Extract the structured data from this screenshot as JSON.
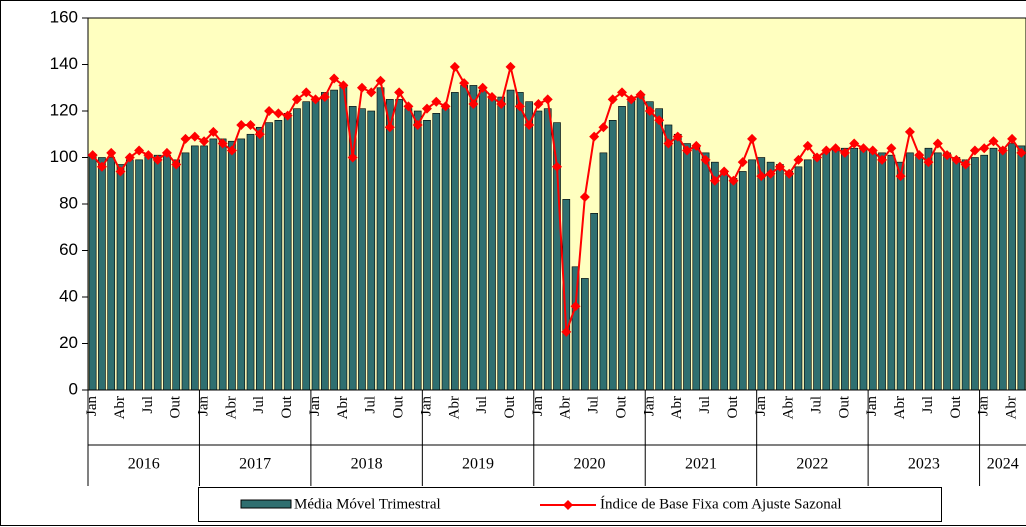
{
  "chart_data": {
    "type": "bar-line",
    "categories": [
      "Jan",
      null,
      null,
      "Abr",
      null,
      null,
      "Jul",
      null,
      null,
      "Out",
      null,
      null,
      "Jan",
      null,
      null,
      "Abr",
      null,
      null,
      "Jul",
      null,
      null,
      "Out",
      null,
      null,
      "Jan",
      null,
      null,
      "Abr",
      null,
      null,
      "Jul",
      null,
      null,
      "Out",
      null,
      null,
      "Jan",
      null,
      null,
      "Abr",
      null,
      null,
      "Jul",
      null,
      null,
      "Out",
      null,
      null,
      "Jan",
      null,
      null,
      "Abr",
      null,
      null,
      "Jul",
      null,
      null,
      "Out",
      null,
      null,
      "Jan",
      null,
      null,
      "Abr",
      null,
      null,
      "Jul",
      null,
      null,
      "Out",
      null,
      null,
      "Jan",
      null,
      null,
      "Abr",
      null,
      null,
      "Jul",
      null,
      null,
      "Out",
      null,
      null,
      "Jan",
      null,
      null,
      "Abr",
      null,
      null,
      "Jul",
      null,
      null,
      "Out",
      null,
      null,
      "Jan",
      null,
      null,
      "Abr",
      null
    ],
    "years": [
      "2016",
      "2017",
      "2018",
      "2019",
      "2020",
      "2021",
      "2022",
      "2023",
      "2024"
    ],
    "series": [
      {
        "name": "Média Móvel Trimestral",
        "kind": "bar",
        "color": "#2f6f70",
        "values": [
          101,
          100,
          100,
          97,
          99,
          99,
          101,
          101,
          101,
          99,
          102,
          105,
          105,
          108,
          108,
          107,
          108,
          110,
          113,
          115,
          116,
          119,
          121,
          124,
          125,
          128,
          129,
          131,
          122,
          121,
          120,
          130,
          125,
          125,
          121,
          120,
          116,
          119,
          121,
          128,
          131,
          131,
          129,
          126,
          126,
          129,
          128,
          124,
          120,
          121,
          115,
          82,
          53,
          48,
          76,
          102,
          116,
          122,
          126,
          127,
          124,
          121,
          114,
          110,
          106,
          105,
          102,
          98,
          94,
          91,
          94,
          99,
          100,
          98,
          97,
          94,
          96,
          99,
          101,
          103,
          104,
          104,
          104,
          104,
          103,
          102,
          101,
          98,
          102,
          101,
          104,
          102,
          102,
          100,
          99,
          100,
          101,
          104,
          104,
          106,
          105
        ]
      },
      {
        "name": "Índice de Base Fixa com Ajuste Sazonal",
        "kind": "line",
        "color": "#ff0000",
        "values": [
          101,
          96,
          102,
          94,
          100,
          103,
          101,
          99,
          102,
          97,
          108,
          109,
          107,
          111,
          106,
          103,
          114,
          114,
          110,
          120,
          119,
          118,
          125,
          128,
          125,
          126,
          134,
          131,
          100,
          130,
          128,
          133,
          113,
          128,
          122,
          114,
          121,
          124,
          122,
          139,
          132,
          123,
          130,
          126,
          123,
          139,
          122,
          114,
          123,
          125,
          96,
          25,
          36,
          83,
          109,
          113,
          125,
          128,
          125,
          127,
          120,
          116,
          106,
          109,
          103,
          105,
          99,
          90,
          94,
          90,
          98,
          108,
          92,
          93,
          96,
          93,
          99,
          105,
          100,
          103,
          104,
          102,
          106,
          104,
          103,
          99,
          104,
          92,
          111,
          101,
          98,
          106,
          101,
          99,
          97,
          103,
          104,
          107,
          103,
          108,
          102
        ]
      }
    ],
    "ylim": [
      0,
      160
    ],
    "yticks": [
      0,
      20,
      40,
      60,
      80,
      100,
      120,
      140,
      160
    ],
    "plot_background": "#ffffc0",
    "legend": "bottom"
  }
}
